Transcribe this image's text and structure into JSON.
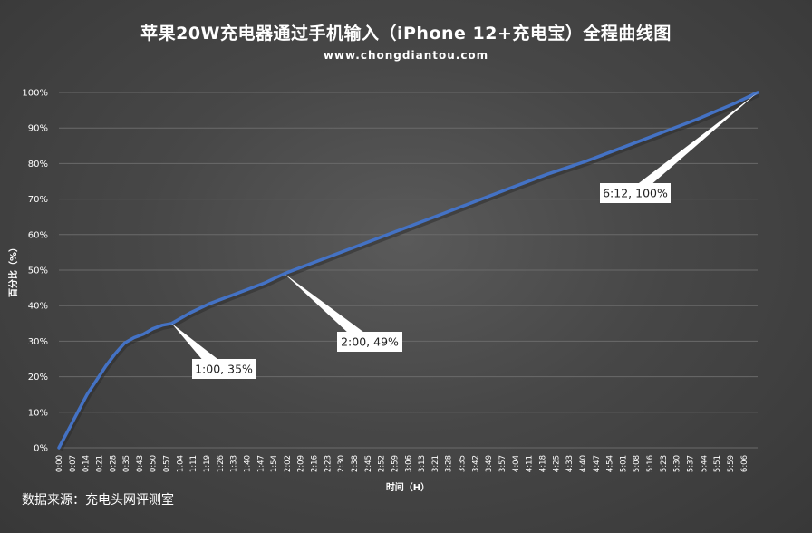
{
  "header": {
    "title": "苹果20W充电器通过手机输入（iPhone 12+充电宝）全程曲线图",
    "subtitle": "www.chongdiantou.com"
  },
  "footer": {
    "source": "数据来源：充电头网评测室"
  },
  "colors": {
    "line": "#4472c4",
    "grid": "#6a6a6a",
    "callout_bg": "#ffffff"
  },
  "chart_data": {
    "type": "line",
    "xlabel": "时间（H）",
    "ylabel": "百分比（%）",
    "ylim": [
      0,
      100
    ],
    "yticks": [
      "0%",
      "10%",
      "20%",
      "30%",
      "40%",
      "50%",
      "60%",
      "70%",
      "80%",
      "90%",
      "100%"
    ],
    "xticks": [
      "0:00",
      "0:07",
      "0:14",
      "0:21",
      "0:28",
      "0:35",
      "0:43",
      "0:50",
      "0:57",
      "1:04",
      "1:11",
      "1:19",
      "1:26",
      "1:33",
      "1:40",
      "1:47",
      "1:54",
      "2:02",
      "2:09",
      "2:16",
      "2:23",
      "2:30",
      "2:38",
      "2:45",
      "2:52",
      "2:59",
      "3:06",
      "3:13",
      "3:21",
      "3:28",
      "3:35",
      "3:42",
      "3:49",
      "3:57",
      "4:04",
      "4:11",
      "4:18",
      "4:25",
      "4:33",
      "4:40",
      "4:47",
      "4:54",
      "5:01",
      "5:08",
      "5:16",
      "5:23",
      "5:30",
      "5:37",
      "5:44",
      "5:51",
      "5:59",
      "6:06"
    ],
    "x_unit": "minutes",
    "xlim": [
      0,
      372
    ],
    "grid": true,
    "series": [
      {
        "x": [
          0,
          5,
          10,
          15,
          20,
          25,
          30,
          35,
          40,
          45,
          50,
          55,
          60,
          70,
          80,
          90,
          100,
          110,
          120,
          140,
          160,
          180,
          200,
          220,
          240,
          260,
          280,
          300,
          320,
          340,
          360,
          372
        ],
        "values": [
          0,
          5,
          10,
          15,
          19,
          23,
          26.5,
          29.5,
          31,
          32,
          33.5,
          34.5,
          35,
          38,
          40.5,
          42.5,
          44.5,
          46.5,
          49,
          53,
          57,
          61,
          65,
          69,
          73,
          77,
          80.5,
          84.5,
          88.5,
          92.5,
          97,
          100
        ]
      }
    ],
    "annotations": [
      {
        "label": "1:00, 35%",
        "x": 60,
        "y": 35
      },
      {
        "label": "2:00, 49%",
        "x": 120,
        "y": 49
      },
      {
        "label": "6:12, 100%",
        "x": 372,
        "y": 100
      }
    ]
  }
}
